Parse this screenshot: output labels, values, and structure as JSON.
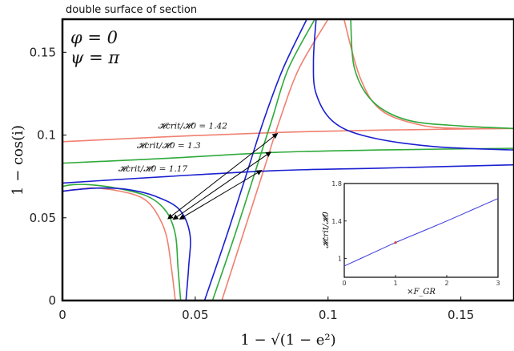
{
  "title": "double surface of section",
  "params": [
    "φ = 0",
    "ψ = π"
  ],
  "chart_data": {
    "type": "line",
    "xlabel": "1 − √(1 − e²)",
    "ylabel": "1 − cos(i)",
    "xlim": [
      0,
      0.17
    ],
    "ylim": [
      0,
      0.17
    ],
    "xticks": [
      0,
      0.05,
      0.1,
      0.15
    ],
    "xtick_labels": [
      "0",
      "0.05",
      "0.1",
      "0.15"
    ],
    "yticks": [
      0,
      0.05,
      0.1,
      0.15
    ],
    "ytick_labels": [
      "0",
      "0.05",
      "0.1",
      "0.15"
    ],
    "grid": false,
    "colors": {
      "red": "#f08070",
      "green": "#2eaa3a",
      "blue": "#1a1fd0",
      "axis": "#000000"
    },
    "series": [
      {
        "name": "𝓗crit/𝓗0 = 1.42",
        "color": "#f08070",
        "separatrix": [
          [
            0,
            0.096
          ],
          [
            0.04,
            0.099
          ],
          [
            0.08,
            0.1015
          ],
          [
            0.12,
            0.103
          ],
          [
            0.17,
            0.104
          ]
        ],
        "left_lobe": [
          [
            0.0425,
            0
          ],
          [
            0.041,
            0.02
          ],
          [
            0.039,
            0.04
          ],
          [
            0.035,
            0.054
          ],
          [
            0.03,
            0.062
          ],
          [
            0.022,
            0.066
          ],
          [
            0.012,
            0.068
          ],
          [
            0.005,
            0.067
          ],
          [
            0,
            0.066
          ]
        ],
        "diagonal": [
          [
            0.06,
            0
          ],
          [
            0.068,
            0.04
          ],
          [
            0.076,
            0.08
          ],
          [
            0.082,
            0.11
          ],
          [
            0.089,
            0.14
          ],
          [
            0.1,
            0.17
          ]
        ],
        "top_right": [
          [
            0.106,
            0.17
          ],
          [
            0.112,
            0.135
          ],
          [
            0.12,
            0.115
          ],
          [
            0.135,
            0.106
          ],
          [
            0.15,
            0.104
          ],
          [
            0.17,
            0.104
          ]
        ]
      },
      {
        "name": "𝓗crit/𝓗0 = 1.3",
        "color": "#2eaa3a",
        "separatrix": [
          [
            0,
            0.083
          ],
          [
            0.04,
            0.086
          ],
          [
            0.08,
            0.0895
          ],
          [
            0.12,
            0.091
          ],
          [
            0.17,
            0.092
          ]
        ],
        "left_lobe": [
          [
            0.0445,
            0
          ],
          [
            0.0435,
            0.02
          ],
          [
            0.0425,
            0.04
          ],
          [
            0.039,
            0.054
          ],
          [
            0.032,
            0.063
          ],
          [
            0.02,
            0.068
          ],
          [
            0.01,
            0.07
          ],
          [
            0.004,
            0.07
          ],
          [
            0,
            0.069
          ]
        ],
        "diagonal": [
          [
            0.0565,
            0
          ],
          [
            0.065,
            0.04
          ],
          [
            0.073,
            0.08
          ],
          [
            0.079,
            0.11
          ],
          [
            0.085,
            0.14
          ],
          [
            0.095,
            0.17
          ]
        ],
        "top_right": [
          [
            0.1085,
            0.17
          ],
          [
            0.11,
            0.14
          ],
          [
            0.117,
            0.12
          ],
          [
            0.13,
            0.109
          ],
          [
            0.15,
            0.1055
          ],
          [
            0.17,
            0.104
          ]
        ]
      },
      {
        "name": "𝓗crit/𝓗0 = 1.17",
        "color": "#1a1fd0",
        "separatrix": [
          [
            0,
            0.071
          ],
          [
            0.04,
            0.075
          ],
          [
            0.08,
            0.0785
          ],
          [
            0.12,
            0.08
          ],
          [
            0.17,
            0.082
          ]
        ],
        "left_lobe": [
          [
            0.0465,
            0
          ],
          [
            0.0475,
            0.02
          ],
          [
            0.048,
            0.04
          ],
          [
            0.044,
            0.055
          ],
          [
            0.035,
            0.063
          ],
          [
            0.025,
            0.067
          ],
          [
            0.015,
            0.068
          ],
          [
            0.005,
            0.067
          ],
          [
            0,
            0.066
          ]
        ],
        "diagonal": [
          [
            0.0535,
            0
          ],
          [
            0.062,
            0.04
          ],
          [
            0.07,
            0.08
          ],
          [
            0.076,
            0.11
          ],
          [
            0.083,
            0.14
          ],
          [
            0.092,
            0.17
          ]
        ],
        "top_right": [
          [
            0.0955,
            0.17
          ],
          [
            0.0945,
            0.145
          ],
          [
            0.0955,
            0.125
          ],
          [
            0.102,
            0.108
          ],
          [
            0.115,
            0.099
          ],
          [
            0.14,
            0.093
          ],
          [
            0.17,
            0.091
          ]
        ]
      }
    ],
    "curve_labels": [
      {
        "text": "𝓗crit/𝓗0 = 1.42",
        "x": 0.036,
        "y": 0.104
      },
      {
        "text": "𝓗crit/𝓗0 = 1.3",
        "x": 0.028,
        "y": 0.092
      },
      {
        "text": "𝓗crit/𝓗0 = 1.17",
        "x": 0.021,
        "y": 0.078
      }
    ],
    "arrows": [
      {
        "from": [
          0.041,
          0.051
        ],
        "to": [
          0.081,
          0.101
        ]
      },
      {
        "from": [
          0.043,
          0.0505
        ],
        "to": [
          0.0785,
          0.0898
        ]
      },
      {
        "from": [
          0.0455,
          0.0505
        ],
        "to": [
          0.075,
          0.0787
        ]
      }
    ],
    "inset": {
      "type": "line",
      "xlabel": "×F_GR",
      "ylabel": "𝓗crit/𝓗0",
      "xlim": [
        0,
        3
      ],
      "ylim": [
        0.8,
        1.8
      ],
      "xticks": [
        0,
        1,
        2,
        3
      ],
      "yticks": [
        1,
        1.4,
        1.8
      ],
      "color": "#3b3bdd",
      "marker_color": "#d04040",
      "x": [
        0,
        0.5,
        1,
        1.5,
        2,
        2.5,
        3
      ],
      "y": [
        0.92,
        1.045,
        1.17,
        1.285,
        1.4,
        1.52,
        1.64
      ],
      "marker": [
        1,
        1.17
      ]
    }
  }
}
